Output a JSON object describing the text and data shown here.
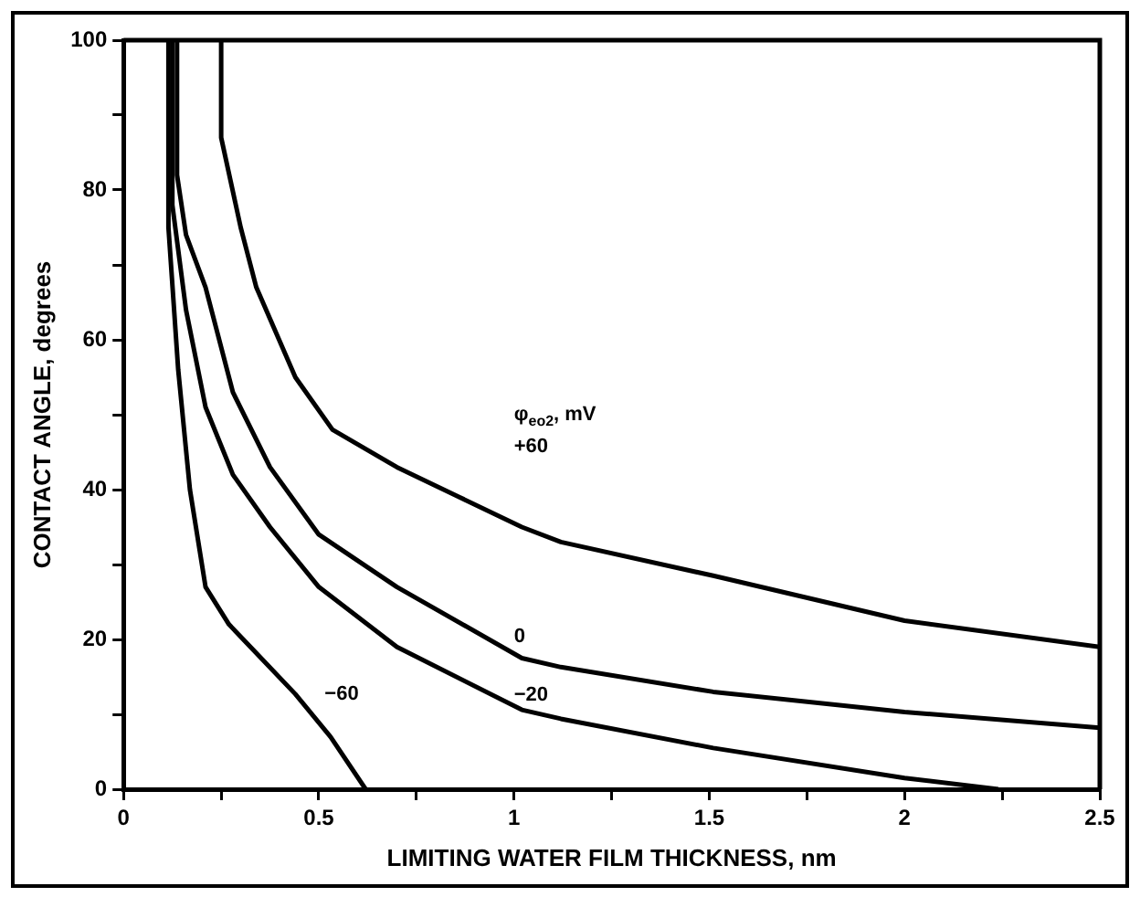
{
  "chart_data": {
    "type": "line",
    "xlabel": "LIMITING WATER FILM THICKNESS, nm",
    "ylabel": "CONTACT ANGLE, degrees",
    "legend_title": "φ$_{eo2}$, mV",
    "series": [
      {
        "name": "+60",
        "color": "#000000",
        "x": [
          0.25,
          0.25,
          0.3,
          0.34,
          0.44,
          0.535,
          0.7,
          0.86,
          1.02,
          1.12,
          1.51,
          2.0,
          2.5
        ],
        "values": [
          100,
          87,
          75,
          67,
          55,
          48,
          43,
          39,
          35,
          33,
          28.5,
          22.5,
          19
        ]
      },
      {
        "name": "0",
        "color": "#000000",
        "x": [
          0.137,
          0.137,
          0.16,
          0.21,
          0.28,
          0.375,
          0.5,
          0.7,
          1.02,
          1.12,
          1.51,
          2.0,
          2.5
        ],
        "values": [
          100,
          82,
          74,
          67,
          53,
          43,
          34,
          27,
          17.5,
          16.3,
          13,
          10.3,
          8.2
        ]
      },
      {
        "name": "−20",
        "color": "#000000",
        "x": [
          0.125,
          0.125,
          0.16,
          0.21,
          0.28,
          0.375,
          0.5,
          0.7,
          1.02,
          1.12,
          1.51,
          2.0,
          2.24
        ],
        "values": [
          100,
          78,
          64,
          51,
          42,
          35,
          27,
          19,
          10.6,
          9.4,
          5.5,
          1.5,
          0
        ]
      },
      {
        "name": "−60",
        "color": "#000000",
        "x": [
          0.115,
          0.115,
          0.14,
          0.17,
          0.21,
          0.27,
          0.325,
          0.44,
          0.53,
          0.62
        ],
        "values": [
          100,
          75,
          56,
          40,
          27,
          22,
          19,
          12.7,
          7,
          0
        ]
      }
    ],
    "xlim": [
      0,
      2.5
    ],
    "xticks": [
      0,
      {
        "value": 0.25,
        "label": null
      },
      0.5,
      {
        "value": 0.75,
        "label": null
      },
      1,
      {
        "value": 1.25,
        "label": null
      },
      1.5,
      {
        "value": 1.75,
        "label": null
      },
      2,
      {
        "value": 2.25,
        "label": null
      },
      2.5
    ],
    "ylim": [
      0,
      100
    ],
    "yticks": [
      0,
      {
        "value": 10,
        "label": null
      },
      20,
      {
        "value": 30,
        "label": null
      },
      40,
      {
        "value": 50,
        "label": null
      },
      60,
      {
        "value": 70,
        "label": null
      },
      80,
      {
        "value": 90,
        "label": null
      },
      100
    ],
    "grid": false,
    "legend": false,
    "marker": "none",
    "line_style": "solid"
  }
}
